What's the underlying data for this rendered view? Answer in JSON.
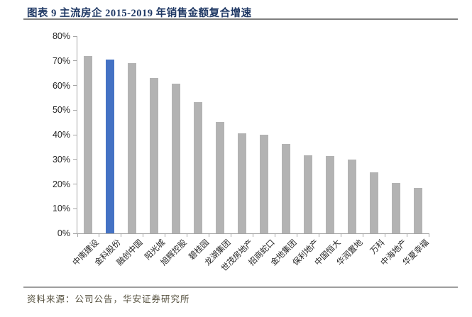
{
  "header": {
    "title": "图表 9 主流房企 2015-2019 年销售金额复合增速"
  },
  "footer": {
    "source": "资料来源：公司公告，华安证券研究所"
  },
  "colors": {
    "title_text": "#1F3864",
    "rule": "#7F7F7F",
    "axis": "#A6A6A6",
    "bar": "#B3B3B3",
    "highlight": "#4472C4",
    "tick_text": "#262626",
    "source_text": "#55503E"
  },
  "chart_data": {
    "type": "bar",
    "figure_label": "图表 9",
    "title": "主流房企 2015-2019 年销售金额复合增速",
    "categories": [
      "中南建设",
      "金科股份",
      "融创中国",
      "阳光城",
      "旭辉控股",
      "碧桂园",
      "龙湖集团",
      "世茂房地产",
      "招商蛇口",
      "金地集团",
      "保利地产",
      "中国恒大",
      "华润置地",
      "万科",
      "中海地产",
      "华夏幸福"
    ],
    "values": [
      72.0,
      70.4,
      69.0,
      63.0,
      60.6,
      53.3,
      45.2,
      40.6,
      40.0,
      36.2,
      31.6,
      31.4,
      29.9,
      24.8,
      20.4,
      18.5
    ],
    "unit": "%",
    "highlight_index": 1,
    "highlight_category": "金科股份",
    "bar_color": "#B3B3B3",
    "highlight_color": "#4472C4",
    "xlabel": "",
    "ylabel": "",
    "ylim": [
      0,
      80
    ],
    "ytick_step": 10,
    "ytick_labels": [
      "0%",
      "10%",
      "20%",
      "30%",
      "40%",
      "50%",
      "60%",
      "70%",
      "80%"
    ],
    "grid": false,
    "legend": false,
    "x_label_rotation_deg": -45
  }
}
